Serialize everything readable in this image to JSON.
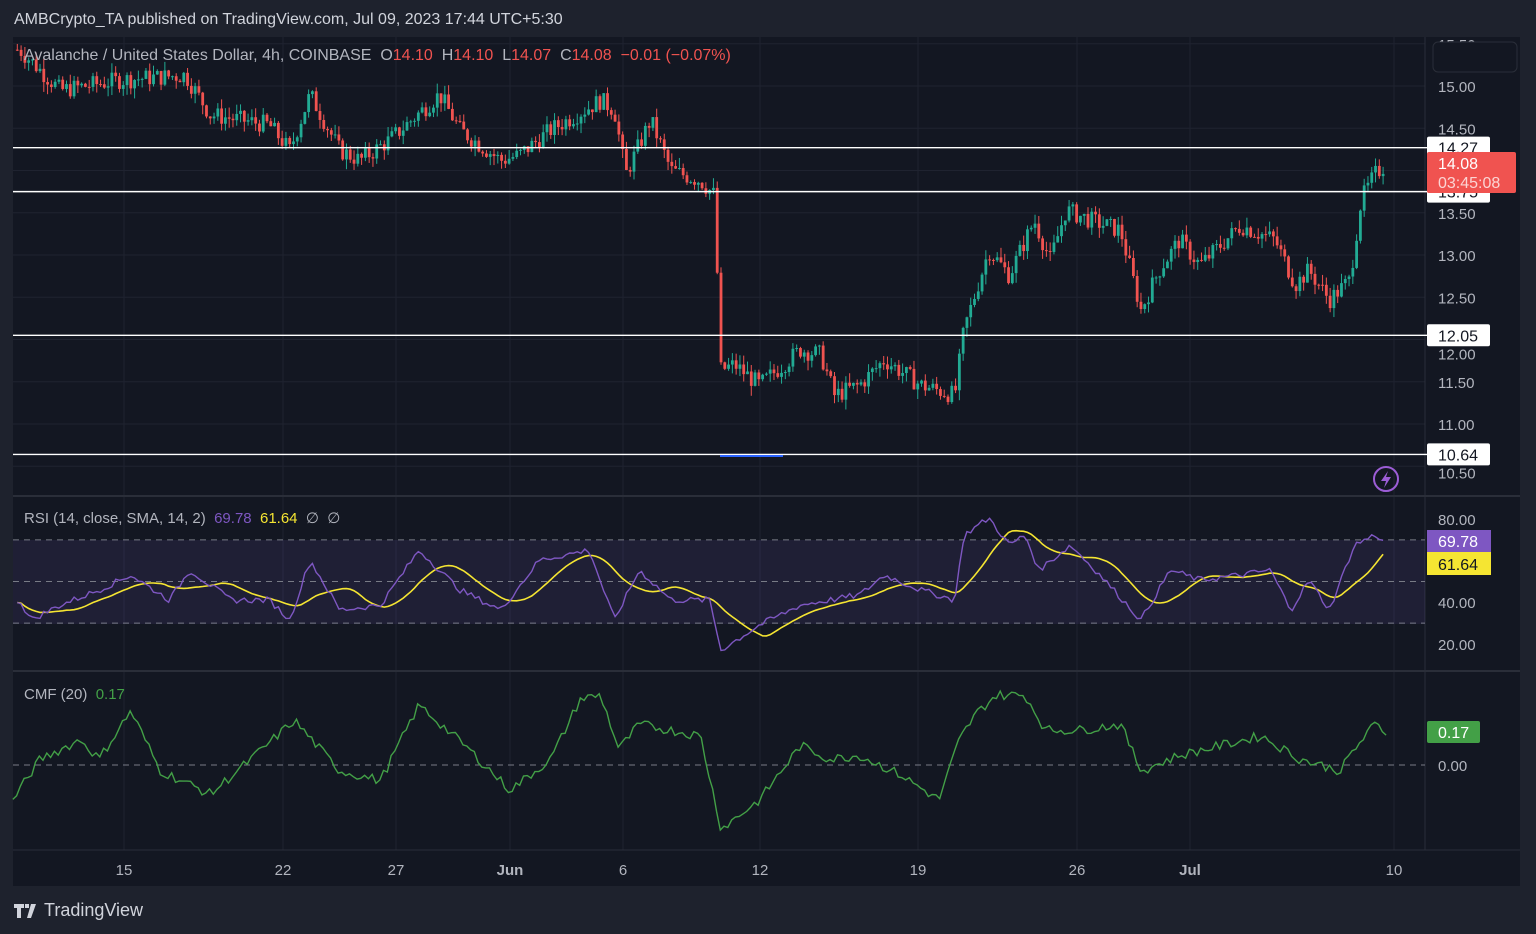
{
  "header": {
    "published": "AMBCrypto_TA published on TradingView.com, Jul 09, 2023 17:44 UTC+5:30"
  },
  "symbol": {
    "name": "Avalanche / United States Dollar, 4h, COINBASE",
    "o_label": "O",
    "open": "14.10",
    "h_label": "H",
    "high": "14.10",
    "l_label": "L",
    "low": "14.07",
    "c_label": "C",
    "close": "14.08",
    "change": "−0.01 (−0.07%)"
  },
  "price_axis": {
    "ticks": [
      "15.50",
      "15.00",
      "14.50",
      "13.50",
      "13.00",
      "12.50",
      "12.00",
      "11.50",
      "11.00",
      "10.50"
    ],
    "current_price": "14.08",
    "countdown": "03:45:08"
  },
  "levels": [
    {
      "label": "14.27",
      "value": 14.27
    },
    {
      "label": "13.75",
      "value": 13.75
    },
    {
      "label": "12.05",
      "value": 12.05
    },
    {
      "label": "10.64",
      "value": 10.64
    }
  ],
  "rsi": {
    "title": "RSI (14, close, SMA, 14, 2)",
    "value": "69.78",
    "sma": "61.64",
    "extra1": "∅",
    "extra2": "∅",
    "ticks": [
      "80.00",
      "40.00",
      "20.00"
    ]
  },
  "cmf": {
    "title": "CMF (20)",
    "value": "0.17",
    "ticks": [
      "0.00"
    ]
  },
  "time_axis": [
    "15",
    "22",
    "27",
    "Jun",
    "6",
    "12",
    "19",
    "26",
    "Jul",
    "10"
  ],
  "brand": "TradingView",
  "colors": {
    "up": "#22ab94",
    "down": "#f05350",
    "rsi": "#7e57c2",
    "rsi_sma": "#f5e532",
    "cmf": "#43a047",
    "bg": "#131722"
  },
  "chart_data": [
    {
      "type": "candlestick",
      "title": "Avalanche / United States Dollar, 4h, COINBASE",
      "x_unit": "days since May 10 2023",
      "ylim": [
        10.4,
        15.55
      ],
      "price_path": [
        [
          0.4,
          15.43
        ],
        [
          2.2,
          14.95
        ],
        [
          4.8,
          15.07
        ],
        [
          7.7,
          15.13
        ],
        [
          8.8,
          14.66
        ],
        [
          11.4,
          14.54
        ],
        [
          12.3,
          14.24
        ],
        [
          13.2,
          14.9
        ],
        [
          14.5,
          14.24
        ],
        [
          15.4,
          14.12
        ],
        [
          16.7,
          14.36
        ],
        [
          18.9,
          14.9
        ],
        [
          19.8,
          14.48
        ],
        [
          21.6,
          14.12
        ],
        [
          22.4,
          14.18
        ],
        [
          23.8,
          14.48
        ],
        [
          26.0,
          14.83
        ],
        [
          26.6,
          14.72
        ],
        [
          27.1,
          13.95
        ],
        [
          28.2,
          14.6
        ],
        [
          29.1,
          14.0
        ],
        [
          30.4,
          13.88
        ],
        [
          31.0,
          13.71
        ],
        [
          31.3,
          11.64
        ],
        [
          31.9,
          11.7
        ],
        [
          33.0,
          11.46
        ],
        [
          34.8,
          11.88
        ],
        [
          35.7,
          11.82
        ],
        [
          36.3,
          11.34
        ],
        [
          37.4,
          11.46
        ],
        [
          38.5,
          11.76
        ],
        [
          40.1,
          11.46
        ],
        [
          41.6,
          11.34
        ],
        [
          42.0,
          12.11
        ],
        [
          43.1,
          13.06
        ],
        [
          44.0,
          12.76
        ],
        [
          45.1,
          13.41
        ],
        [
          45.8,
          12.94
        ],
        [
          46.5,
          13.53
        ],
        [
          47.6,
          13.41
        ],
        [
          48.9,
          13.29
        ],
        [
          49.8,
          12.35
        ],
        [
          50.6,
          12.82
        ],
        [
          51.5,
          13.18
        ],
        [
          52.4,
          12.88
        ],
        [
          54.2,
          13.35
        ],
        [
          55.7,
          13.18
        ],
        [
          56.6,
          12.65
        ],
        [
          57.2,
          12.82
        ],
        [
          58.1,
          12.47
        ],
        [
          59.0,
          12.7
        ],
        [
          59.5,
          13.65
        ],
        [
          60.1,
          13.95
        ],
        [
          60.6,
          14.08
        ]
      ],
      "horizontal_levels": [
        14.27,
        13.75,
        12.05,
        10.64
      ]
    },
    {
      "type": "line",
      "title": "RSI (14, close, SMA, 14, 2)",
      "ylim": [
        10,
        85
      ],
      "bands": [
        30,
        50,
        70
      ],
      "series": [
        {
          "name": "RSI",
          "points": [
            [
              0.4,
              41.1
            ],
            [
              0.9,
              31.5
            ],
            [
              2.2,
              38.7
            ],
            [
              3.9,
              45.9
            ],
            [
              5.3,
              53.1
            ],
            [
              7.0,
              41.1
            ],
            [
              7.9,
              55.5
            ],
            [
              9.7,
              41.1
            ],
            [
              11.4,
              41.1
            ],
            [
              12.3,
              31.5
            ],
            [
              13.2,
              60.3
            ],
            [
              14.5,
              36.3
            ],
            [
              16.3,
              38.7
            ],
            [
              18.0,
              65.1
            ],
            [
              19.8,
              45.9
            ],
            [
              21.6,
              36.3
            ],
            [
              23.3,
              60.3
            ],
            [
              25.5,
              65.1
            ],
            [
              26.6,
              31.5
            ],
            [
              27.7,
              55.5
            ],
            [
              29.1,
              41.1
            ],
            [
              30.8,
              41.1
            ],
            [
              31.3,
              17.1
            ],
            [
              33.0,
              29.1
            ],
            [
              34.8,
              38.7
            ],
            [
              36.1,
              41.1
            ],
            [
              37.4,
              43.5
            ],
            [
              38.5,
              53.1
            ],
            [
              40.1,
              45.9
            ],
            [
              41.6,
              41.1
            ],
            [
              42.0,
              72.3
            ],
            [
              43.1,
              80.5
            ],
            [
              44.0,
              67.5
            ],
            [
              44.7,
              72.3
            ],
            [
              45.3,
              55.5
            ],
            [
              46.7,
              67.5
            ],
            [
              48.0,
              53.1
            ],
            [
              49.8,
              31.5
            ],
            [
              51.1,
              55.5
            ],
            [
              52.4,
              50.7
            ],
            [
              54.2,
              53.1
            ],
            [
              55.5,
              55.5
            ],
            [
              56.4,
              36.3
            ],
            [
              57.2,
              50.7
            ],
            [
              58.1,
              36.3
            ],
            [
              59.2,
              67.5
            ],
            [
              60.1,
              72.3
            ],
            [
              60.6,
              69.78
            ]
          ]
        }
      ]
    },
    {
      "type": "line",
      "title": "CMF (20)",
      "ylim": [
        -0.5,
        0.45
      ],
      "series": [
        {
          "name": "CMF",
          "points": [
            [
              0.1,
              -0.18
            ],
            [
              1.3,
              0.03
            ],
            [
              3.1,
              0.13
            ],
            [
              3.9,
              0.03
            ],
            [
              5.3,
              0.28
            ],
            [
              6.6,
              -0.03
            ],
            [
              8.8,
              -0.15
            ],
            [
              10.6,
              0.03
            ],
            [
              12.5,
              0.23
            ],
            [
              14.5,
              -0.03
            ],
            [
              16.3,
              -0.08
            ],
            [
              18.0,
              0.31
            ],
            [
              20.2,
              0.08
            ],
            [
              22.0,
              -0.13
            ],
            [
              23.8,
              0.03
            ],
            [
              25.1,
              0.34
            ],
            [
              26.0,
              0.36
            ],
            [
              26.8,
              0.08
            ],
            [
              27.7,
              0.21
            ],
            [
              30.4,
              0.15
            ],
            [
              31.3,
              -0.33
            ],
            [
              33.0,
              -0.18
            ],
            [
              34.8,
              0.1
            ],
            [
              36.1,
              0.03
            ],
            [
              37.4,
              0.05
            ],
            [
              39.2,
              -0.05
            ],
            [
              40.9,
              -0.18
            ],
            [
              41.8,
              0.13
            ],
            [
              42.5,
              0.26
            ],
            [
              43.4,
              0.36
            ],
            [
              44.7,
              0.36
            ],
            [
              45.6,
              0.18
            ],
            [
              47.1,
              0.18
            ],
            [
              48.9,
              0.21
            ],
            [
              49.8,
              -0.03
            ],
            [
              51.5,
              0.05
            ],
            [
              53.3,
              0.1
            ],
            [
              55.1,
              0.15
            ],
            [
              56.8,
              0.03
            ],
            [
              58.6,
              -0.03
            ],
            [
              59.0,
              0.05
            ],
            [
              60.1,
              0.21
            ],
            [
              60.6,
              0.17
            ]
          ]
        }
      ]
    }
  ]
}
